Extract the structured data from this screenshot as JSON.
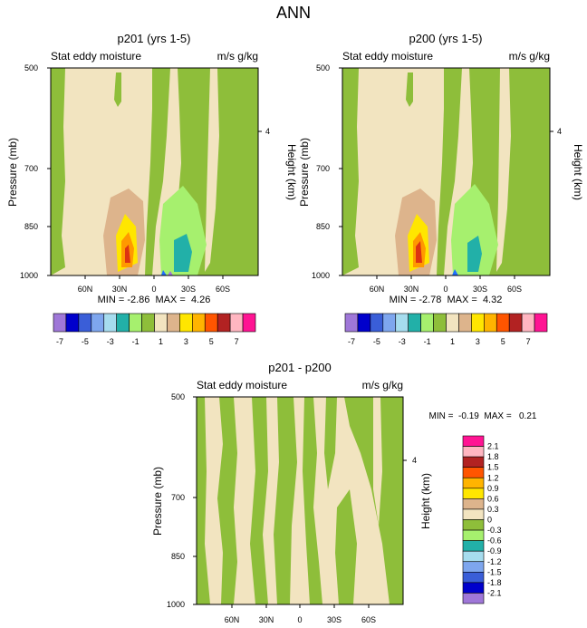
{
  "figure_title": "ANN",
  "colors": {
    "bright_green": "#a6f06e",
    "yellow": "#ffe600",
    "orange": "#ff9900",
    "blue": "#1f6fff",
    "purple": "#9f77d8",
    "teal": "#22b0a8",
    "red": "#dd3311",
    "tan": "#ddb48c",
    "green": "#8ebe3a",
    "cream": "#f2e4c0"
  },
  "chart_data": [
    {
      "type": "contour",
      "title": "p201 (yrs 1-5)",
      "left_label": "Stat eddy moisture",
      "right_label": "m/s g/kg",
      "ylabel": "Pressure (mb)",
      "y2label": "Height (km)",
      "yticks": [
        "500",
        "700",
        "850",
        "1000"
      ],
      "y2ticks": [
        "4"
      ],
      "xticks": [
        "60N",
        "30N",
        "0",
        "30S",
        "60S"
      ],
      "min": "-2.86",
      "max": "4.26",
      "stats_text": "MIN = -2.86  MAX =  4.26"
    },
    {
      "type": "contour",
      "title": "p200 (yrs 1-5)",
      "left_label": "Stat eddy moisture",
      "right_label": "m/s g/kg",
      "ylabel": "Pressure (mb)",
      "y2label": "Height (km)",
      "yticks": [
        "500",
        "700",
        "850",
        "1000"
      ],
      "y2ticks": [
        "4"
      ],
      "xticks": [
        "60N",
        "30N",
        "0",
        "30S",
        "60S"
      ],
      "min": "-2.78",
      "max": "4.32",
      "stats_text": "MIN = -2.78  MAX =  4.32"
    },
    {
      "type": "contour",
      "title": "p201 - p200",
      "left_label": "Stat eddy moisture",
      "right_label": "m/s g/kg",
      "ylabel": "Pressure (mb)",
      "y2label": "Height (km)",
      "yticks": [
        "500",
        "700",
        "850",
        "1000"
      ],
      "y2ticks": [
        "4"
      ],
      "xticks": [
        "60N",
        "30N",
        "0",
        "30S",
        "60S"
      ],
      "min": "-0.19",
      "max": "0.21",
      "stats_text": "MIN =  -0.19  MAX =   0.21"
    }
  ],
  "colorbar_top": {
    "labels": [
      "-7",
      "-5",
      "-3",
      "-1",
      "1",
      "3",
      "5",
      "7"
    ],
    "colors": [
      "#9f77d8",
      "#0000cc",
      "#3a5ed8",
      "#7ea6ee",
      "#a6dcee",
      "#22b0a8",
      "#a6f06e",
      "#8ebe3a",
      "#f2e4c0",
      "#ddb48c",
      "#ffe600",
      "#ffb400",
      "#ff5500",
      "#b22222",
      "#ffb6c1",
      "#ff1493"
    ]
  },
  "colorbar_bottom": {
    "labels": [
      "2.1",
      "1.8",
      "1.5",
      "1.2",
      "0.9",
      "0.6",
      "0.3",
      "0",
      "-0.3",
      "-0.6",
      "-0.9",
      "-1.2",
      "-1.5",
      "-1.8",
      "-2.1"
    ],
    "colors": [
      "#ff1493",
      "#ffb6c1",
      "#b22222",
      "#ff5500",
      "#ffb400",
      "#ffe600",
      "#ddb48c",
      "#f2e4c0",
      "#8ebe3a",
      "#a6f06e",
      "#22b0a8",
      "#a6dcee",
      "#7ea6ee",
      "#3a5ed8",
      "#0000cc",
      "#9f77d8"
    ]
  }
}
